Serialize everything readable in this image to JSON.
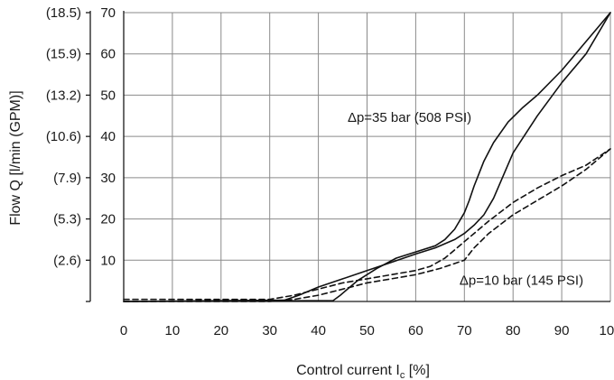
{
  "chart_data": {
    "type": "line",
    "xlabel": "Control current I",
    "xlabel_subscript": "c",
    "xlabel_unit": " [%]",
    "ylabel": "Flow Q [l/min (GPM)]",
    "xlim": [
      0,
      100
    ],
    "ylim": [
      0,
      70
    ],
    "x_ticks": [
      0,
      10,
      20,
      30,
      40,
      50,
      60,
      70,
      80,
      90,
      100
    ],
    "x_tick_labels": [
      "0",
      "10",
      "20",
      "30",
      "40",
      "50",
      "60",
      "70",
      "80",
      "90",
      "100"
    ],
    "y_ticks": [
      10,
      20,
      30,
      40,
      50,
      60,
      70
    ],
    "y_tick_labels": [
      "10",
      "20",
      "30",
      "40",
      "50",
      "60",
      "70"
    ],
    "y2_tick_labels": [
      "(2.6)",
      "(5.3)",
      "(7.9)",
      "(10.6)",
      "(13.2)",
      "(15.9)",
      "(18.5)"
    ],
    "grid": true,
    "annotations": [
      {
        "text": "Δp=35 bar (508 PSI)",
        "x": 46,
        "y": 43.5
      },
      {
        "text": "Δp=10 bar (145 PSI)",
        "x": 69,
        "y": 4
      }
    ],
    "series": [
      {
        "style": "solid",
        "x": [
          0,
          33,
          36,
          40,
          45,
          50,
          55,
          60,
          64,
          68,
          70,
          72,
          74,
          76,
          80,
          85,
          90,
          95,
          100
        ],
        "y": [
          0,
          0.3,
          1.5,
          3.5,
          5.5,
          7.5,
          9.5,
          11.5,
          13,
          15,
          16.5,
          18.5,
          21,
          25,
          36,
          45,
          53,
          60,
          70
        ]
      },
      {
        "style": "solid",
        "x": [
          0,
          43,
          44.5,
          48,
          52,
          56,
          60,
          64,
          66,
          68,
          70,
          71,
          72,
          73,
          74,
          76,
          79,
          82,
          85,
          90,
          95,
          100
        ],
        "y": [
          0,
          0.2,
          1.5,
          5,
          8,
          10.5,
          12,
          13.5,
          15,
          17.5,
          21.5,
          24.5,
          28,
          31,
          34,
          38.5,
          43.5,
          47,
          50,
          56,
          63,
          70
        ]
      },
      {
        "style": "dashed",
        "x": [
          0,
          30,
          35,
          40,
          45,
          50,
          55,
          60,
          63,
          66,
          68,
          70,
          72,
          75,
          80,
          85,
          90,
          95,
          100
        ],
        "y": [
          0.5,
          0.5,
          1.5,
          3,
          4.5,
          5.5,
          6.5,
          7.5,
          8.5,
          10.5,
          12.5,
          14.5,
          16.5,
          19.5,
          24,
          27.5,
          30.5,
          33,
          37
        ]
      },
      {
        "style": "dashed",
        "x": [
          0,
          30,
          35,
          40,
          45,
          50,
          55,
          60,
          65,
          70,
          72,
          75,
          80,
          85,
          90,
          95,
          100
        ],
        "y": [
          0,
          0,
          0.5,
          1.5,
          3,
          4.5,
          5.5,
          6.5,
          8,
          10,
          13,
          16.5,
          21,
          24.5,
          28,
          32,
          37
        ]
      }
    ]
  }
}
